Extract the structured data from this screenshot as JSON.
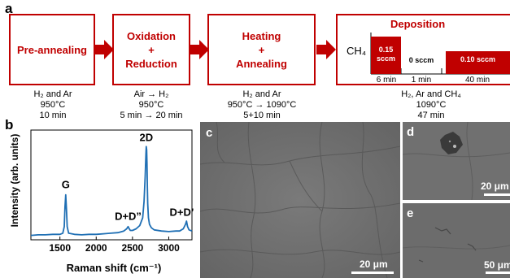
{
  "panels": {
    "a": "a",
    "b": "b",
    "c": "c",
    "d": "d",
    "e": "e"
  },
  "process": {
    "steps": [
      {
        "label": "Pre-annealing"
      },
      {
        "label": "Oxidation\n+\nReduction"
      },
      {
        "label": "Heating\n+\nAnnealing"
      }
    ],
    "deposition": {
      "title": "Deposition",
      "gas_label": "CH₄",
      "segments": [
        {
          "flow": "0.15\nsccm",
          "time": "6 min"
        },
        {
          "flow": "0 sccm",
          "time": "1 min"
        },
        {
          "flow": "0.10 sccm",
          "time": "40 min"
        }
      ]
    },
    "conditions": [
      "H₂ and Ar\n950°C\n10 min",
      "Air → H₂\n950°C\n5 min → 20 min",
      "H₂ and Ar\n950°C → 1090°C\n5+10 min",
      "H₂, Ar and CH₄\n1090°C\n47 min"
    ],
    "colors": {
      "accent": "#c00000",
      "line": "#1f6fb4"
    }
  },
  "chart_data": {
    "type": "line",
    "xlabel": "Raman shift (cm⁻¹)",
    "ylabel": "Intensity (arb. units)",
    "xlim": [
      1100,
      3320
    ],
    "ylim": [
      0,
      1.0
    ],
    "xticks": [
      1500,
      2000,
      2500,
      3000
    ],
    "xtick_labels": [
      "1500",
      "2000",
      "2500",
      "3000"
    ],
    "series": [
      {
        "x": [
          1100,
          1200,
          1300,
          1400,
          1500,
          1540,
          1560,
          1570,
          1580,
          1590,
          1600,
          1620,
          1700,
          1800,
          1900,
          2000,
          2100,
          2200,
          2300,
          2380,
          2420,
          2440,
          2455,
          2470,
          2500,
          2550,
          2600,
          2640,
          2660,
          2675,
          2685,
          2690,
          2695,
          2700,
          2705,
          2710,
          2720,
          2735,
          2760,
          2800,
          2900,
          3000,
          3100,
          3150,
          3200,
          3230,
          3245,
          3260,
          3280,
          3320
        ],
        "y": [
          0.04,
          0.045,
          0.045,
          0.05,
          0.05,
          0.06,
          0.12,
          0.3,
          0.41,
          0.28,
          0.12,
          0.06,
          0.05,
          0.045,
          0.05,
          0.05,
          0.055,
          0.06,
          0.065,
          0.08,
          0.1,
          0.12,
          0.1,
          0.085,
          0.085,
          0.1,
          0.13,
          0.2,
          0.35,
          0.58,
          0.78,
          0.85,
          0.82,
          0.7,
          0.5,
          0.33,
          0.2,
          0.14,
          0.11,
          0.09,
          0.08,
          0.075,
          0.08,
          0.08,
          0.1,
          0.14,
          0.17,
          0.12,
          0.09,
          0.08
        ]
      }
    ],
    "annotations": [
      {
        "text": "G",
        "x": 1580,
        "y": 0.47
      },
      {
        "text": "2D",
        "x": 2690,
        "y": 0.9
      },
      {
        "text": "D+D”",
        "x": 2440,
        "y": 0.18
      },
      {
        "text": "D+D’",
        "x": 3180,
        "y": 0.22
      }
    ]
  },
  "sem": {
    "c": {
      "scale": "20 μm"
    },
    "d": {
      "scale": "20 μm"
    },
    "e": {
      "scale": "50 μm"
    }
  }
}
